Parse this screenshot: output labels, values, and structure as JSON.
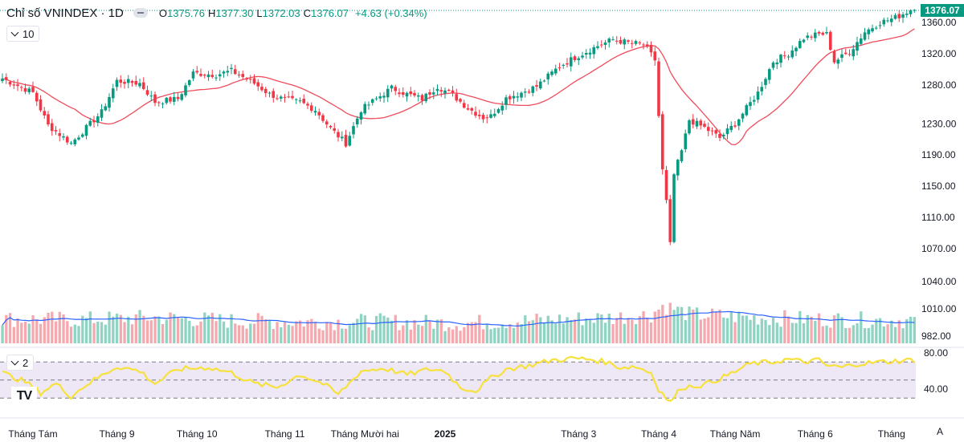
{
  "header": {
    "symbol": "Chỉ số VNINDEX · 1D",
    "open_label": "O",
    "open": "1375.76",
    "high_label": "H",
    "high": "1377.30",
    "low_label": "L",
    "low": "1372.03",
    "close_label": "C",
    "close": "1376.07",
    "change": "+4.63 (+0.34%)"
  },
  "indicators": {
    "ma_label": "10",
    "rsi_label": "2"
  },
  "last_price_label": "1376.07",
  "logo_text": "TV",
  "scale_mode": "A",
  "colors": {
    "up": "#089981",
    "down": "#f23645",
    "up_volume": "#8fd3c3",
    "down_volume": "#f5a9ae",
    "ma_price": "#f04c5b",
    "ma_volume": "#2962ff",
    "rsi": "#f7e13b",
    "rsi_band": "#ede7f6"
  },
  "chart_data": {
    "type": "candlestick",
    "title": "Chỉ số VNINDEX · 1D",
    "price_axis": {
      "ticks": [
        1360.0,
        1320.0,
        1280.0,
        1230.0,
        1190.0,
        1150.0,
        1110.0,
        1070.0,
        1040.0,
        1010.0,
        982.0
      ],
      "tick_labels": [
        "1360.00",
        "1320.00",
        "1280.00",
        "1230.00",
        "1190.00",
        "1150.00",
        "1110.00",
        "1070.00",
        "1040.00",
        "1010.00",
        "982.00"
      ],
      "scale": "log"
    },
    "rsi_axis": {
      "ticks": [
        80.0,
        40.0
      ],
      "tick_labels": [
        "80.00",
        "40.00"
      ],
      "band": [
        30,
        70
      ],
      "mid": 50
    },
    "time_axis": [
      {
        "label": "Tháng Tám",
        "bar": 8
      },
      {
        "label": "Tháng 9",
        "bar": 30
      },
      {
        "label": "Tháng 10",
        "bar": 51
      },
      {
        "label": "Tháng 11",
        "bar": 74
      },
      {
        "label": "Tháng Mười hai",
        "bar": 95
      },
      {
        "label": "2025",
        "bar": 116
      },
      {
        "label": "Tháng 3",
        "bar": 151
      },
      {
        "label": "Tháng 4",
        "bar": 172
      },
      {
        "label": "Tháng Năm",
        "bar": 192
      },
      {
        "label": "Tháng 6",
        "bar": 213
      },
      {
        "label": "Tháng",
        "bar": 233
      }
    ],
    "close_keypoints": [
      [
        0,
        1288
      ],
      [
        8,
        1270
      ],
      [
        12,
        1228
      ],
      [
        18,
        1205
      ],
      [
        20,
        1215
      ],
      [
        26,
        1245
      ],
      [
        30,
        1285
      ],
      [
        36,
        1282
      ],
      [
        40,
        1258
      ],
      [
        46,
        1262
      ],
      [
        50,
        1295
      ],
      [
        56,
        1293
      ],
      [
        60,
        1298
      ],
      [
        66,
        1282
      ],
      [
        70,
        1268
      ],
      [
        74,
        1261
      ],
      [
        78,
        1258
      ],
      [
        82,
        1248
      ],
      [
        86,
        1224
      ],
      [
        90,
        1205
      ],
      [
        94,
        1248
      ],
      [
        98,
        1262
      ],
      [
        102,
        1276
      ],
      [
        106,
        1268
      ],
      [
        110,
        1262
      ],
      [
        114,
        1278
      ],
      [
        118,
        1267
      ],
      [
        122,
        1250
      ],
      [
        126,
        1238
      ],
      [
        128,
        1240
      ],
      [
        132,
        1263
      ],
      [
        136,
        1270
      ],
      [
        140,
        1278
      ],
      [
        146,
        1304
      ],
      [
        150,
        1315
      ],
      [
        156,
        1330
      ],
      [
        160,
        1338
      ],
      [
        164,
        1334
      ],
      [
        168,
        1332
      ],
      [
        171,
        1312
      ],
      [
        172,
        1240
      ],
      [
        173,
        1170
      ],
      [
        174,
        1130
      ],
      [
        175,
        1075
      ],
      [
        176,
        1165
      ],
      [
        178,
        1195
      ],
      [
        180,
        1235
      ],
      [
        184,
        1225
      ],
      [
        188,
        1212
      ],
      [
        192,
        1230
      ],
      [
        198,
        1270
      ],
      [
        202,
        1310
      ],
      [
        206,
        1320
      ],
      [
        210,
        1340
      ],
      [
        214,
        1345
      ],
      [
        216,
        1345
      ],
      [
        218,
        1310
      ],
      [
        222,
        1322
      ],
      [
        226,
        1348
      ],
      [
        230,
        1360
      ],
      [
        234,
        1366
      ],
      [
        238,
        1376.07
      ]
    ],
    "volume_keypoints": [
      [
        0,
        0.55
      ],
      [
        20,
        0.52
      ],
      [
        40,
        0.6
      ],
      [
        60,
        0.48
      ],
      [
        80,
        0.45
      ],
      [
        100,
        0.45
      ],
      [
        120,
        0.4
      ],
      [
        140,
        0.5
      ],
      [
        160,
        0.6
      ],
      [
        170,
        0.7
      ],
      [
        173,
        1.0
      ],
      [
        176,
        0.9
      ],
      [
        180,
        0.7
      ],
      [
        200,
        0.58
      ],
      [
        220,
        0.52
      ],
      [
        238,
        0.5
      ]
    ],
    "rsi_keypoints": [
      [
        0,
        58
      ],
      [
        6,
        48
      ],
      [
        10,
        36
      ],
      [
        14,
        46
      ],
      [
        18,
        32
      ],
      [
        22,
        45
      ],
      [
        30,
        65
      ],
      [
        36,
        60
      ],
      [
        40,
        46
      ],
      [
        46,
        62
      ],
      [
        54,
        64
      ],
      [
        60,
        58
      ],
      [
        66,
        46
      ],
      [
        72,
        42
      ],
      [
        78,
        56
      ],
      [
        84,
        46
      ],
      [
        88,
        34
      ],
      [
        94,
        60
      ],
      [
        100,
        63
      ],
      [
        106,
        56
      ],
      [
        112,
        62
      ],
      [
        116,
        60
      ],
      [
        120,
        42
      ],
      [
        124,
        38
      ],
      [
        128,
        52
      ],
      [
        132,
        62
      ],
      [
        138,
        66
      ],
      [
        144,
        72
      ],
      [
        150,
        74
      ],
      [
        154,
        73
      ],
      [
        158,
        70
      ],
      [
        162,
        64
      ],
      [
        166,
        65
      ],
      [
        170,
        58
      ],
      [
        172,
        40
      ],
      [
        175,
        25
      ],
      [
        178,
        42
      ],
      [
        184,
        45
      ],
      [
        190,
        55
      ],
      [
        196,
        68
      ],
      [
        202,
        70
      ],
      [
        206,
        73
      ],
      [
        210,
        70
      ],
      [
        214,
        72
      ],
      [
        216,
        66
      ],
      [
        220,
        64
      ],
      [
        224,
        68
      ],
      [
        230,
        70
      ],
      [
        238,
        72
      ]
    ]
  }
}
